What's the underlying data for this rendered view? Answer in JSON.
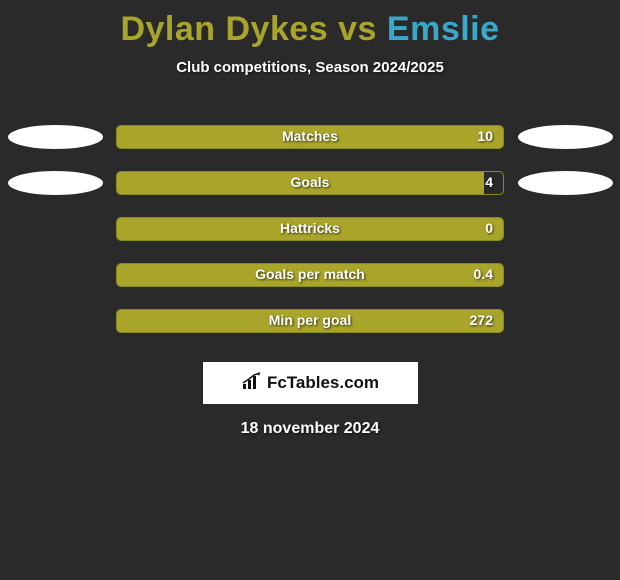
{
  "title": {
    "player1": "Dylan Dykes",
    "vs": "vs",
    "player2": "Emslie",
    "player1_color": "#a9a52a",
    "player2_color": "#3aa8c9"
  },
  "subtitle": "Club competitions, Season 2024/2025",
  "background_color": "#2a2a2a",
  "bar_border_color": "#8a8a1f",
  "rows": [
    {
      "label": "Matches",
      "value": "10",
      "fill_pct": 100,
      "fill_color": "#a9a52a",
      "left_ellipse": "#ffffff",
      "right_ellipse": "#ffffff"
    },
    {
      "label": "Goals",
      "value": "4",
      "fill_pct": 95,
      "fill_color": "#a9a52a",
      "left_ellipse": "#ffffff",
      "right_ellipse": "#ffffff"
    },
    {
      "label": "Hattricks",
      "value": "0",
      "fill_pct": 100,
      "fill_color": "#a9a52a",
      "left_ellipse": null,
      "right_ellipse": null
    },
    {
      "label": "Goals per match",
      "value": "0.4",
      "fill_pct": 100,
      "fill_color": "#a9a52a",
      "left_ellipse": null,
      "right_ellipse": null
    },
    {
      "label": "Min per goal",
      "value": "272",
      "fill_pct": 100,
      "fill_color": "#a9a52a",
      "left_ellipse": null,
      "right_ellipse": null
    }
  ],
  "logo": {
    "text": "FcTables.com",
    "icon_color": "#111111"
  },
  "date": "18 november 2024"
}
